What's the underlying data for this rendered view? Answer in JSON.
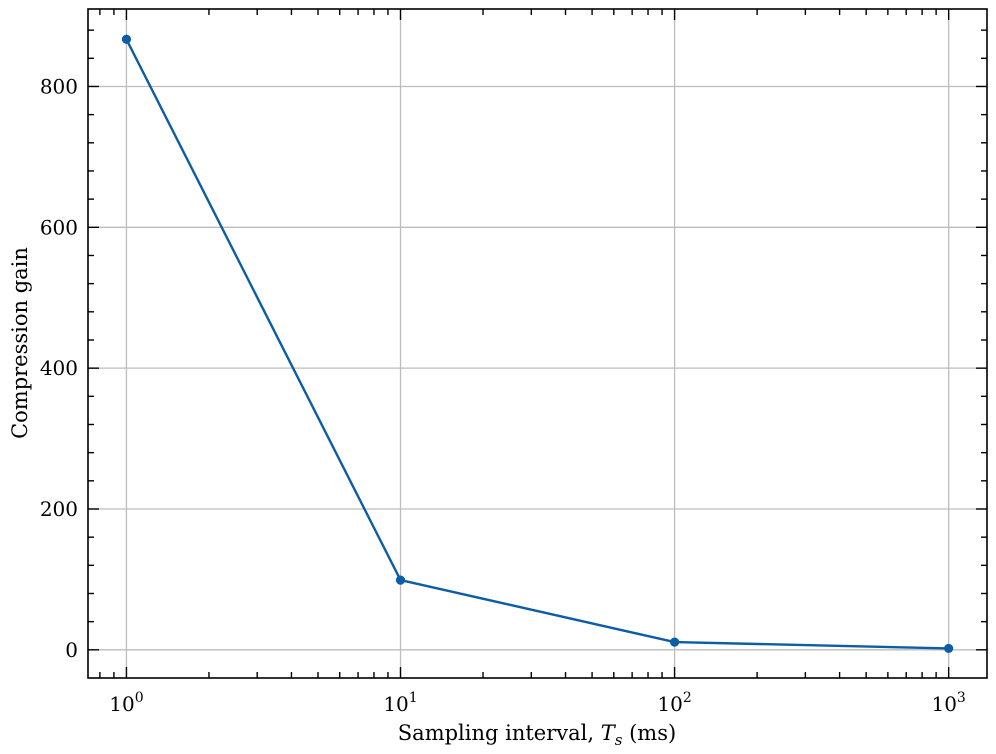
{
  "chart_data": {
    "type": "line",
    "x": [
      1,
      10,
      100,
      1000
    ],
    "series": [
      {
        "values": [
          867,
          99,
          11,
          2
        ],
        "color": "#0c5da5"
      }
    ],
    "xlabel": {
      "main": "Sampling interval, ",
      "var": "T",
      "sub": "s",
      "unit": " (ms)"
    },
    "ylabel": "Compression gain",
    "xscale": "log",
    "xlim": [
      0.724,
      1380
    ],
    "ylim": [
      -40,
      910
    ],
    "xticks": [
      {
        "value": 1,
        "base": "10",
        "exp": "0"
      },
      {
        "value": 10,
        "base": "10",
        "exp": "1"
      },
      {
        "value": 100,
        "base": "10",
        "exp": "2"
      },
      {
        "value": 1000,
        "base": "10",
        "exp": "3"
      }
    ],
    "yticks": [
      0,
      200,
      400,
      600,
      800
    ],
    "grid": true
  }
}
